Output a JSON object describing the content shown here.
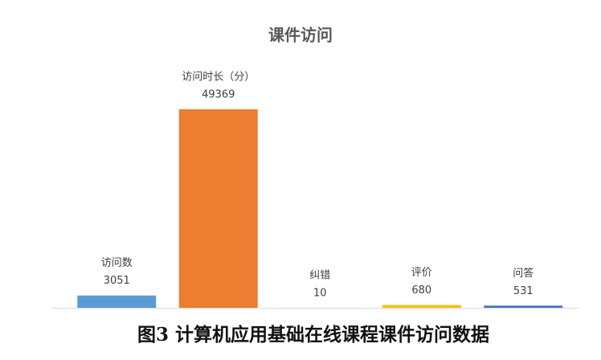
{
  "chart_data": {
    "type": "bar",
    "title": "课件访问",
    "categories": [
      "访问数",
      "访问时长（分）",
      "纠错",
      "评价",
      "问答"
    ],
    "values": [
      3051,
      49369,
      10,
      680,
      531
    ],
    "colors": [
      "#5b9bd5",
      "#ed7d31",
      "#a5a5a5",
      "#ffc000",
      "#4472c4"
    ],
    "caption": "图3 计算机应用基础在线课程课件访问数据"
  }
}
